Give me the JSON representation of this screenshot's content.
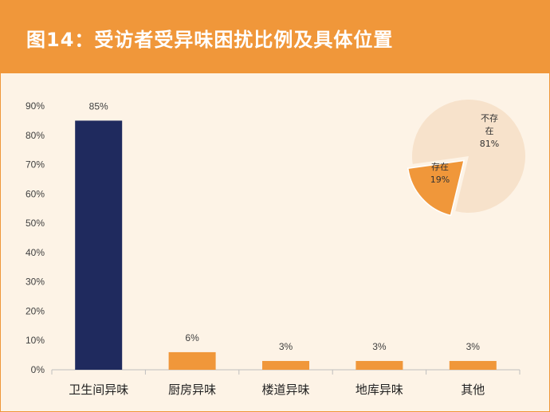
{
  "title": "图14：受访者受异味困扰比例及具体位置",
  "colors": {
    "header": "#F0973A",
    "background": "#FDF3E6",
    "bar_primary": "#1F2A5E",
    "bar_secondary": "#F0973A",
    "pie_exist": "#F0973A",
    "pie_not_exist": "#F7E2CB"
  },
  "chart_data": [
    {
      "type": "bar",
      "categories": [
        "卫生间异味",
        "厨房异味",
        "楼道异味",
        "地库异味",
        "其他"
      ],
      "values": [
        85,
        6,
        3,
        3,
        3
      ],
      "data_labels": [
        "85%",
        "6%",
        "3%",
        "3%",
        "3%"
      ],
      "ylim": [
        0,
        90
      ],
      "yticks": [
        "0%",
        "10%",
        "20%",
        "30%",
        "40%",
        "50%",
        "60%",
        "70%",
        "80%",
        "90%"
      ],
      "grid": false
    },
    {
      "type": "pie",
      "slices": [
        {
          "label_lines": [
            "不存",
            "在",
            "81%"
          ],
          "value": 81
        },
        {
          "label_lines": [
            "存在",
            "19%"
          ],
          "value": 19
        }
      ]
    }
  ]
}
